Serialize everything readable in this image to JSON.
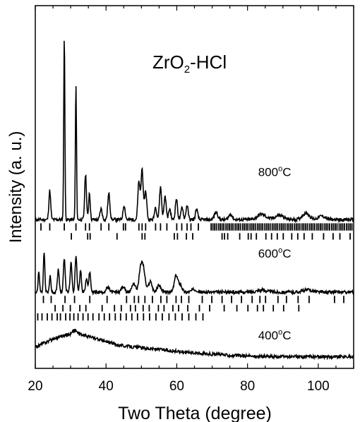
{
  "chart_data": {
    "type": "line",
    "title_parts": {
      "main": "ZrO",
      "sub": "2",
      "rest": "-HCl"
    },
    "xlabel": "Two Theta (degree)",
    "ylabel": "Intensity (a. u.)",
    "xlim": [
      20,
      110
    ],
    "ylim": [
      0,
      10
    ],
    "xticks": [
      20,
      40,
      60,
      80,
      100
    ],
    "yticks": "none",
    "grid": false,
    "legend": "none",
    "series": [
      {
        "label": "800°C",
        "label_parts": {
          "value": "800",
          "sup": "o",
          "unit": "C"
        },
        "label_at": [
          83,
          5.3
        ],
        "baseline": 4.1,
        "line_color": "#000000",
        "peaks": [
          [
            24.1,
            0.8,
            0.25
          ],
          [
            28.2,
            5.1,
            0.16
          ],
          [
            31.5,
            3.7,
            0.16
          ],
          [
            34.2,
            1.25,
            0.25
          ],
          [
            35.3,
            0.75,
            0.22
          ],
          [
            38.6,
            0.3,
            0.3
          ],
          [
            40.8,
            0.72,
            0.3
          ],
          [
            45.1,
            0.4,
            0.3
          ],
          [
            49.3,
            1.05,
            0.3
          ],
          [
            50.2,
            1.4,
            0.3
          ],
          [
            51.2,
            0.8,
            0.3
          ],
          [
            54.0,
            0.35,
            0.3
          ],
          [
            55.4,
            0.9,
            0.3
          ],
          [
            56.7,
            0.65,
            0.3
          ],
          [
            58.0,
            0.3,
            0.3
          ],
          [
            59.9,
            0.58,
            0.3
          ],
          [
            61.5,
            0.35,
            0.3
          ],
          [
            62.9,
            0.4,
            0.3
          ],
          [
            65.6,
            0.3,
            0.3
          ],
          [
            71.1,
            0.2,
            0.5
          ],
          [
            75.2,
            0.15,
            0.5
          ],
          [
            84.0,
            0.15,
            1.2
          ],
          [
            89.0,
            0.12,
            1.2
          ],
          [
            96.5,
            0.18,
            1.0
          ],
          [
            101.0,
            0.1,
            1.0
          ]
        ],
        "refs_rows": [
          {
            "y": 3.8,
            "h": 0.2,
            "positions": [
              21.6,
              24.1,
              28.2,
              31.5,
              34.2,
              35.3,
              38.6,
              40.8,
              44.9,
              45.5,
              49.3,
              50.2,
              51.2,
              54.0,
              55.4,
              57.2,
              60.0,
              61.4,
              62.9,
              64.0,
              66.1,
              69.7,
              70.2,
              70.7,
              71.2,
              71.8,
              72.3,
              72.8,
              73.3,
              73.9,
              74.4,
              74.9,
              75.4,
              75.9,
              76.5,
              77.0,
              77.5,
              78.0,
              78.6,
              79.1,
              79.6,
              80.1,
              80.7,
              81.2,
              81.7,
              82.2,
              82.8,
              83.3,
              83.8,
              84.3,
              84.9,
              85.4,
              85.9,
              86.4,
              87.0,
              87.5,
              88.0,
              88.5,
              89.1,
              89.6,
              90.1,
              90.6,
              91.2,
              91.7,
              92.2,
              92.7,
              93.3,
              93.8,
              94.3,
              94.8,
              95.4,
              95.9,
              96.4,
              96.9,
              97.5,
              98.0,
              98.5,
              99.0,
              99.6,
              100.1,
              100.6,
              101.1,
              101.7,
              102.2,
              102.7,
              103.2,
              103.8,
              104.3,
              104.8,
              105.3,
              105.9,
              106.4,
              106.9,
              107.4,
              108.0,
              108.5,
              109.0,
              109.5
            ]
          },
          {
            "y": 3.55,
            "h": 0.18,
            "positions": [
              30.2,
              34.8,
              35.5,
              43.1,
              50.2,
              51.0,
              59.3,
              60.2,
              62.7,
              64.5,
              72.8,
              73.5,
              74.4,
              77.8,
              80.2,
              81.0,
              82.5,
              85.2,
              86.8,
              88.4,
              90.1,
              92.5,
              94.2,
              96.0,
              98.3,
              101.5,
              104.2,
              106.1,
              109.0
            ]
          }
        ]
      },
      {
        "label": "600°C",
        "label_parts": {
          "value": "600",
          "sup": "o",
          "unit": "C"
        },
        "label_at": [
          83,
          3.05
        ],
        "baseline": 2.1,
        "line_color": "#000000",
        "peaks": [
          [
            21.0,
            0.55,
            0.2
          ],
          [
            22.5,
            1.1,
            0.2
          ],
          [
            24.2,
            0.45,
            0.2
          ],
          [
            26.5,
            0.65,
            0.25
          ],
          [
            28.2,
            0.95,
            0.25
          ],
          [
            30.1,
            0.8,
            0.25
          ],
          [
            31.5,
            1.0,
            0.25
          ],
          [
            32.8,
            0.6,
            0.25
          ],
          [
            34.5,
            0.35,
            0.3
          ],
          [
            35.4,
            0.55,
            0.25
          ],
          [
            40.5,
            0.12,
            0.5
          ],
          [
            44.8,
            0.15,
            0.5
          ],
          [
            47.8,
            0.25,
            0.5
          ],
          [
            49.8,
            0.6,
            0.5
          ],
          [
            50.6,
            0.55,
            0.5
          ],
          [
            52.5,
            0.3,
            0.5
          ],
          [
            55.0,
            0.2,
            0.5
          ],
          [
            59.8,
            0.45,
            0.5
          ],
          [
            61.0,
            0.2,
            0.5
          ],
          [
            65.0,
            0.08,
            0.8
          ],
          [
            84.0,
            0.06,
            1.5
          ],
          [
            97.0,
            0.06,
            1.5
          ]
        ],
        "refs_rows": [
          {
            "y": 1.8,
            "h": 0.2,
            "positions": [
              22.3,
              24.5,
              28.4,
              31.1,
              35.4,
              40.3,
              45.8,
              48.0,
              49.2,
              51.0,
              53.1,
              55.5,
              57.2,
              59.8,
              61.3,
              63.4,
              67.2,
              69.9,
              72.8,
              75.5,
              78.3,
              81.3,
              83.5,
              85.1,
              88.6,
              91.0,
              94.3,
              97.4,
              104.6,
              107.2
            ]
          },
          {
            "y": 1.57,
            "h": 0.18,
            "positions": [
              25.6,
              27.8,
              29.9,
              32.6,
              34.3,
              38.9,
              42.4,
              44.3,
              46.9,
              48.3,
              50.5,
              52.2,
              54.8,
              56.4,
              58.9,
              60.5,
              63.1,
              66.4,
              69.3,
              73.4,
              77.0,
              80.1,
              82.8,
              84.5,
              87.3,
              90.2,
              94.5
            ]
          },
          {
            "y": 1.32,
            "h": 0.2,
            "positions": [
              20.7,
              21.9,
              23.4,
              24.7,
              26.2,
              27.1,
              28.6,
              29.8,
              30.9,
              32.1,
              33.5,
              34.9,
              36.3,
              38.0,
              39.5,
              41.0,
              42.6,
              44.1,
              45.7,
              47.3,
              48.9,
              50.6,
              52.3,
              54.1,
              55.9,
              57.8,
              59.6,
              61.5,
              63.4,
              65.4,
              67.4
            ]
          }
        ]
      },
      {
        "label": "400°C",
        "label_parts": {
          "value": "400",
          "sup": "o",
          "unit": "C"
        },
        "label_at": [
          83,
          0.8
        ],
        "baseline": 0.32,
        "line_color": "#000000",
        "peaks": [
          [
            30.0,
            0.58,
            8.0
          ],
          [
            31.2,
            0.12,
            0.6
          ],
          [
            49.0,
            0.22,
            10.0
          ],
          [
            68.0,
            0.05,
            8.0
          ]
        ],
        "refs_rows": []
      }
    ]
  }
}
